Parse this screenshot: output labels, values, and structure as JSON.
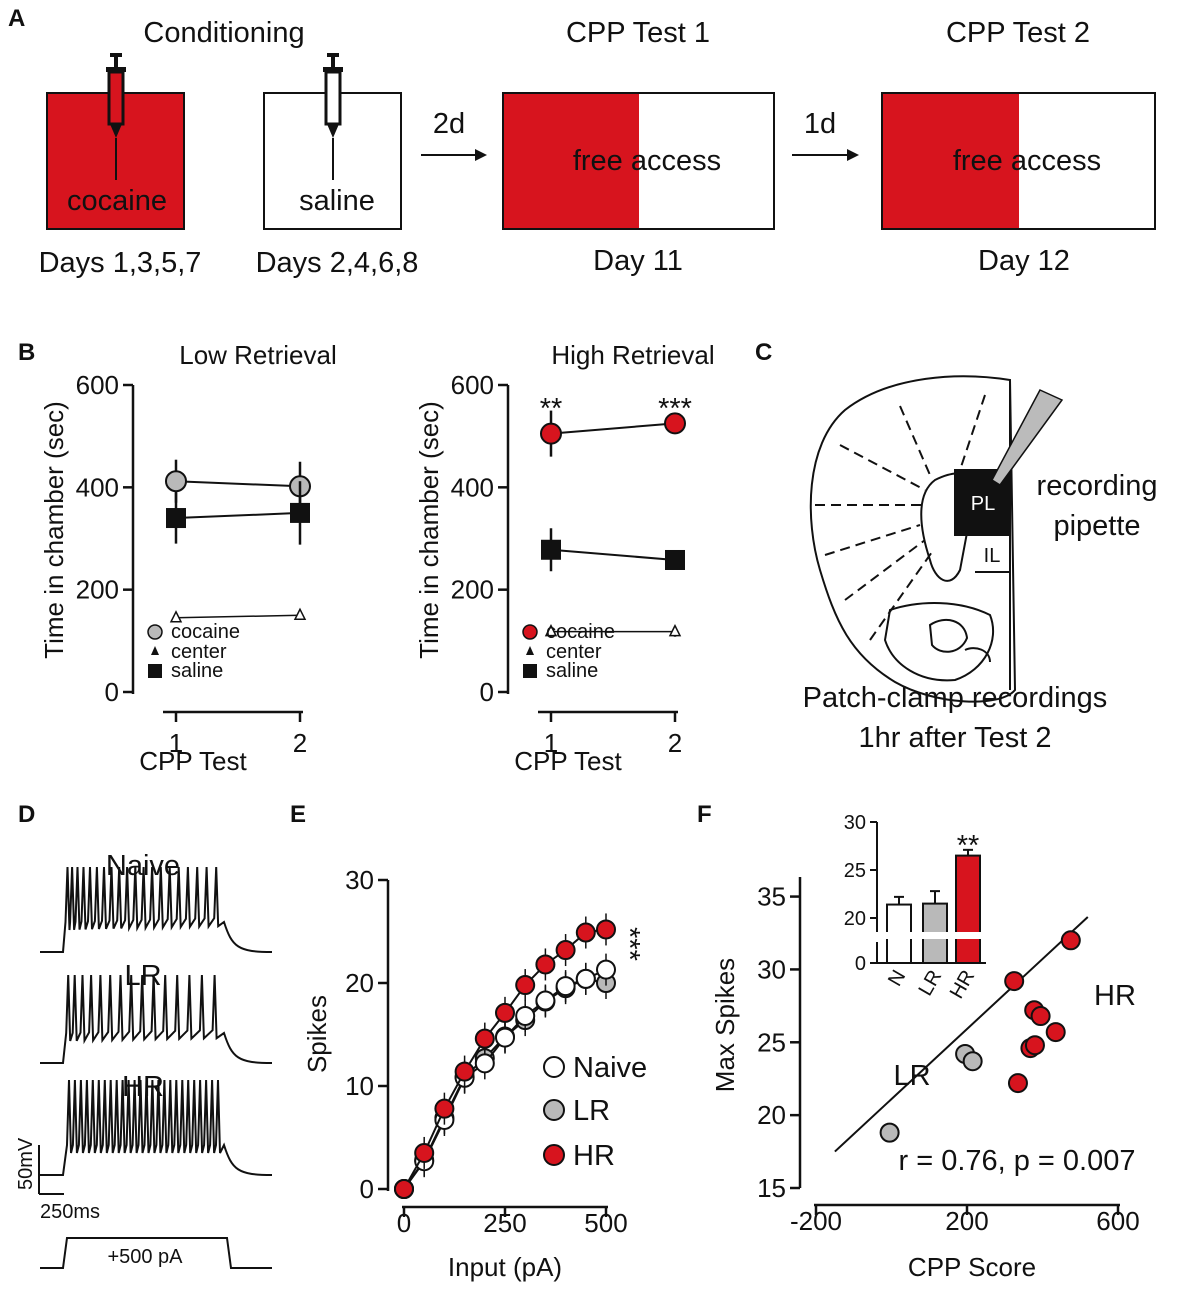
{
  "colors": {
    "cocaine": "#d7141e",
    "lr": "#b9b9b9",
    "naive": "#ffffff",
    "ink": "#111111"
  },
  "panels": {
    "A": "A",
    "B": "B",
    "C": "C",
    "D": "D",
    "E": "E",
    "F": "F"
  },
  "panelA": {
    "title_conditioning": "Conditioning",
    "box_cocaine": "cocaine",
    "box_saline": "saline",
    "days_cocaine": "Days 1,3,5,7",
    "days_saline": "Days 2,4,6,8",
    "arrow1": "2d",
    "test1_title": "CPP Test 1",
    "test1_label": "free access",
    "test1_day": "Day 11",
    "arrow2": "1d",
    "test2_title": "CPP Test 2",
    "test2_label": "free access",
    "test2_day": "Day 12"
  },
  "panelC": {
    "label_pl": "PL",
    "label_il": "IL",
    "pipette_line1": "recording",
    "pipette_line2": "pipette",
    "caption_line1": "Patch-clamp recordings",
    "caption_line2": "1hr after Test 2"
  },
  "panelD": {
    "naive": "Naive",
    "lr": "LR",
    "hr": "HR",
    "scale_mv": "50mV",
    "scale_ms": "250ms",
    "step": "+500 pA"
  },
  "chart_data": [
    {
      "id": "B-low",
      "type": "line",
      "title": "Low Retrieval",
      "xlabel": "CPP Test",
      "ylabel": "Time in chamber (sec)",
      "categories": [
        "1",
        "2"
      ],
      "ylim": [
        0,
        600
      ],
      "yticks": [
        0,
        200,
        400,
        600
      ],
      "series": [
        {
          "name": "cocaine",
          "values": [
            412,
            402
          ],
          "err": [
            42,
            48
          ],
          "marker": "circle"
        },
        {
          "name": "center",
          "values": [
            145,
            150
          ],
          "err": [
            8,
            6
          ],
          "marker": "triangle"
        },
        {
          "name": "saline",
          "values": [
            340,
            350
          ],
          "err": [
            50,
            62
          ],
          "marker": "square"
        }
      ],
      "annotations": []
    },
    {
      "id": "B-high",
      "type": "line",
      "title": "High Retrieval",
      "xlabel": "CPP Test",
      "ylabel": "Time in chamber (sec)",
      "categories": [
        "1",
        "2"
      ],
      "ylim": [
        0,
        600
      ],
      "yticks": [
        0,
        200,
        400,
        600
      ],
      "series": [
        {
          "name": "cocaine",
          "values": [
            505,
            525
          ],
          "err": [
            45,
            20
          ],
          "marker": "circle"
        },
        {
          "name": "center",
          "values": [
            118,
            118
          ],
          "err": [
            10,
            10
          ],
          "marker": "triangle"
        },
        {
          "name": "saline",
          "values": [
            278,
            258
          ],
          "err": [
            42,
            14
          ],
          "marker": "square"
        }
      ],
      "annotations": [
        "**",
        "***"
      ]
    },
    {
      "id": "E",
      "type": "line",
      "xlabel": "Input (pA)",
      "ylabel": "Spikes",
      "x": [
        0,
        50,
        100,
        150,
        200,
        250,
        300,
        350,
        400,
        450,
        500
      ],
      "xlim": [
        0,
        500
      ],
      "xticks": [
        0,
        250,
        500
      ],
      "ylim": [
        0,
        30
      ],
      "yticks": [
        0,
        10,
        20,
        30
      ],
      "series": [
        {
          "name": "Naive",
          "values": [
            0,
            2.7,
            6.7,
            10.8,
            12.2,
            14.7,
            16.8,
            18.3,
            19.7,
            20.4,
            21.3
          ]
        },
        {
          "name": "LR",
          "values": [
            0,
            2.8,
            6.9,
            10.9,
            12.7,
            14.8,
            16.4,
            18.2,
            19.5,
            20.4,
            20.0
          ]
        },
        {
          "name": "HR",
          "values": [
            0,
            3.5,
            7.8,
            11.4,
            14.6,
            17.1,
            19.8,
            21.8,
            23.2,
            24.9,
            25.2
          ]
        }
      ],
      "annotation": "***"
    },
    {
      "id": "F",
      "type": "scatter",
      "xlabel": "CPP Score",
      "ylabel": "Max Spikes",
      "xlim": [
        -200,
        600
      ],
      "xticks": [
        -200,
        200,
        600
      ],
      "ylim": [
        15,
        36
      ],
      "yticks": [
        15,
        20,
        25,
        30,
        35
      ],
      "series": [
        {
          "name": "LR",
          "points": [
            [
              -5,
              18.8
            ],
            [
              195,
              24.2
            ],
            [
              215,
              23.7
            ]
          ]
        },
        {
          "name": "HR",
          "points": [
            [
              325,
              29.2
            ],
            [
              335,
              22.2
            ],
            [
              368,
              24.6
            ],
            [
              380,
              24.8
            ],
            [
              378,
              27.2
            ],
            [
              395,
              26.8
            ],
            [
              435,
              25.7
            ],
            [
              475,
              32.0
            ]
          ]
        }
      ],
      "fit": {
        "x": [
          -150,
          520
        ],
        "y": [
          17.5,
          33.6
        ]
      },
      "labels": {
        "lr": "LR",
        "hr": "HR"
      },
      "stats": "r = 0.76, p = 0.007"
    },
    {
      "id": "F-inset",
      "type": "bar",
      "categories": [
        "N",
        "LR",
        "HR"
      ],
      "values": [
        21.4,
        21.5,
        26.5
      ],
      "err": [
        0.8,
        1.3,
        0.6
      ],
      "ylim": [
        0,
        30
      ],
      "yticks": [
        0,
        20,
        25,
        30
      ],
      "annotation": "**"
    }
  ]
}
